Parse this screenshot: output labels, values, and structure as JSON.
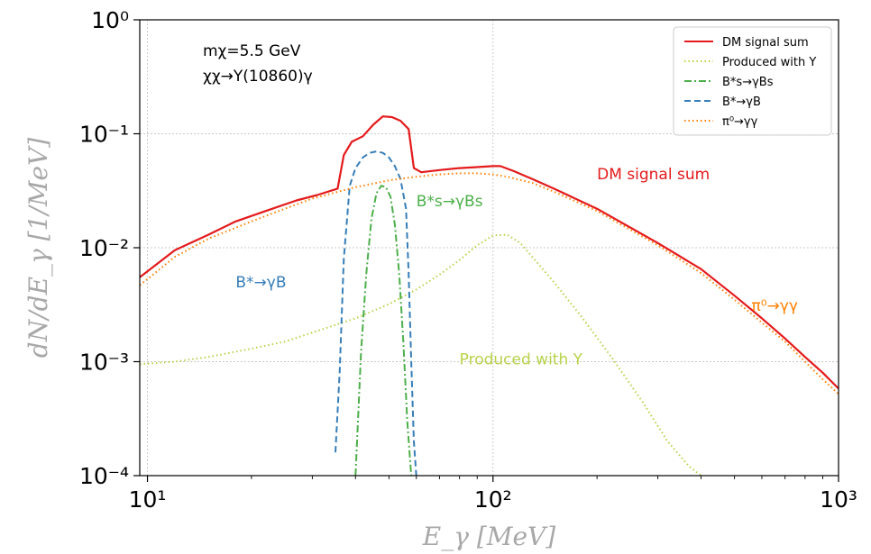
{
  "chart_data": {
    "type": "line",
    "xlabel": "E_γ [MeV]",
    "ylabel": "dN/dE_γ [1/MeV]",
    "xscale": "log",
    "yscale": "log",
    "xlim": [
      9.5,
      1000
    ],
    "ylim": [
      0.0001,
      1
    ],
    "grid": true,
    "legend_position": "top-right",
    "x_ticks": [
      {
        "value": 10,
        "label": "10¹"
      },
      {
        "value": 100,
        "label": "10²"
      },
      {
        "value": 1000,
        "label": "10³"
      }
    ],
    "y_ticks": [
      {
        "value": 1,
        "label": "10⁰"
      },
      {
        "value": 0.1,
        "label": "10⁻¹"
      },
      {
        "value": 0.01,
        "label": "10⁻²"
      },
      {
        "value": 0.001,
        "label": "10⁻³"
      },
      {
        "value": 0.0001,
        "label": "10⁻⁴"
      }
    ],
    "annotation": [
      "mχ=5.5 GeV",
      "χχ→Υ(10860)γ"
    ],
    "series": [
      {
        "name": "DM signal sum",
        "color": "#e41a1c",
        "dash": "solid",
        "x": [
          9.5,
          10,
          12,
          15,
          18,
          22,
          27,
          31,
          35.5,
          37,
          39,
          42,
          45,
          48,
          51,
          54,
          57,
          59,
          62,
          70,
          80,
          90,
          100,
          105,
          115,
          130,
          150,
          200,
          300,
          400,
          500,
          600,
          700,
          800,
          900,
          1000
        ],
        "y": [
          0.0055,
          0.0062,
          0.0095,
          0.013,
          0.017,
          0.021,
          0.026,
          0.029,
          0.033,
          0.065,
          0.085,
          0.095,
          0.12,
          0.142,
          0.14,
          0.13,
          0.11,
          0.05,
          0.046,
          0.048,
          0.05,
          0.051,
          0.052,
          0.052,
          0.047,
          0.04,
          0.033,
          0.022,
          0.011,
          0.0065,
          0.0038,
          0.0024,
          0.0016,
          0.0011,
          0.0008,
          0.00058
        ],
        "label_text": "DM signal sum",
        "label_at": [
          200,
          0.04
        ]
      },
      {
        "name": "Produced with Υ",
        "color": "#b8d24a",
        "dash": "dotted",
        "x": [
          9.5,
          12,
          15,
          20,
          25,
          30,
          40,
          50,
          60,
          70,
          80,
          90,
          100,
          110,
          120,
          130,
          150,
          180,
          220,
          270,
          320,
          370,
          400
        ],
        "y": [
          0.00095,
          0.001,
          0.0011,
          0.0013,
          0.0015,
          0.0018,
          0.0024,
          0.0032,
          0.0043,
          0.0058,
          0.0078,
          0.0105,
          0.0128,
          0.013,
          0.011,
          0.0083,
          0.005,
          0.0025,
          0.0011,
          0.00045,
          0.0002,
          0.00012,
          0.0001
        ],
        "label_text": "Produced with Υ",
        "label_at": [
          80,
          0.00095
        ]
      },
      {
        "name": "B*s→γBs",
        "color": "#4daf4a",
        "dash": "dashdot",
        "x": [
          40,
          41.5,
          43,
          44.5,
          46,
          47.5,
          49,
          50.5,
          52,
          53.5,
          55,
          56.5,
          58
        ],
        "y": [
          0.0001,
          0.0012,
          0.006,
          0.018,
          0.03,
          0.035,
          0.034,
          0.028,
          0.016,
          0.006,
          0.0015,
          0.0003,
          0.0001
        ],
        "label_text": "B*s→γBs",
        "label_at": [
          60,
          0.023
        ]
      },
      {
        "name": "B*→γB",
        "color": "#377eb8",
        "dash": "dashed",
        "x": [
          35,
          36,
          37,
          38.5,
          40,
          42,
          44,
          46,
          48,
          50,
          52,
          54,
          56,
          57,
          58,
          59,
          60
        ],
        "y": [
          0.00016,
          0.0008,
          0.008,
          0.035,
          0.05,
          0.062,
          0.068,
          0.07,
          0.068,
          0.062,
          0.052,
          0.04,
          0.022,
          0.006,
          0.001,
          0.0002,
          0.0001
        ],
        "label_text": "B*→γB",
        "label_at": [
          18,
          0.0045
        ]
      },
      {
        "name": "π⁰→γγ",
        "color": "#ff7f00",
        "dash": "dotted",
        "x": [
          9.5,
          10,
          12,
          15,
          20,
          25,
          30,
          40,
          50,
          60,
          70,
          80,
          90,
          100,
          110,
          130,
          150,
          200,
          300,
          400,
          500,
          600,
          700,
          800,
          900,
          1000
        ],
        "y": [
          0.0047,
          0.0053,
          0.0083,
          0.012,
          0.017,
          0.022,
          0.027,
          0.034,
          0.039,
          0.042,
          0.044,
          0.045,
          0.045,
          0.044,
          0.042,
          0.037,
          0.031,
          0.021,
          0.0105,
          0.006,
          0.0035,
          0.0022,
          0.0015,
          0.001,
          0.0007,
          0.00052
        ],
        "label_text": "π⁰→γγ",
        "label_at": [
          560,
          0.0028
        ]
      }
    ]
  }
}
